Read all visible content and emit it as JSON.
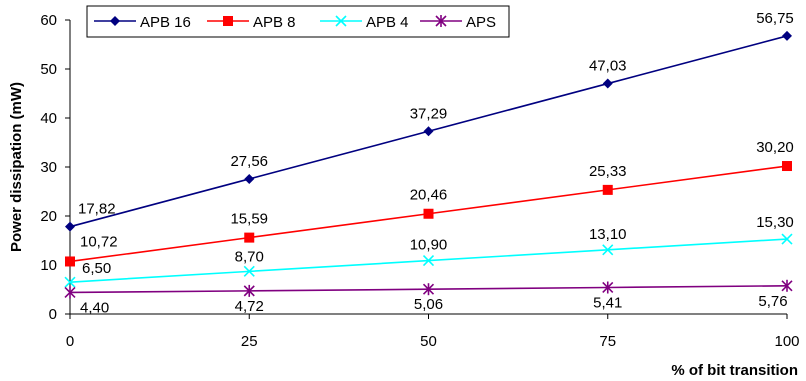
{
  "chart_data": {
    "type": "line",
    "xlabel": "% of bit transition",
    "ylabel": "Power dissipation (mW)",
    "x": [
      0,
      25,
      50,
      75,
      100
    ],
    "xlim": [
      0,
      100
    ],
    "ylim": [
      0,
      60
    ],
    "y_ticks": [
      "0",
      "10",
      "20",
      "30",
      "40",
      "50",
      "60"
    ],
    "x_ticks": [
      "0",
      "25",
      "50",
      "75",
      "100"
    ],
    "grid": false,
    "legend_position": "top-left",
    "series": [
      {
        "name": "APB 16",
        "color": "#000080",
        "marker": "diamond",
        "values": [
          17.82,
          27.56,
          37.29,
          47.03,
          56.75
        ],
        "labels": [
          "17,82",
          "27,56",
          "37,29",
          "47,03",
          "56,75"
        ]
      },
      {
        "name": "APB 8",
        "color": "#ff0000",
        "marker": "square",
        "values": [
          10.72,
          15.59,
          20.46,
          25.33,
          30.2
        ],
        "labels": [
          "10,72",
          "15,59",
          "20,46",
          "25,33",
          "30,20"
        ]
      },
      {
        "name": "APB 4",
        "color": "#00ffff",
        "marker": "x",
        "values": [
          6.5,
          8.7,
          10.9,
          13.1,
          15.3
        ],
        "labels": [
          "6,50",
          "8,70",
          "10,90",
          "13,10",
          "15,30"
        ]
      },
      {
        "name": "APS",
        "color": "#800080",
        "marker": "star",
        "values": [
          4.4,
          4.72,
          5.06,
          5.41,
          5.76
        ],
        "labels": [
          "4,40",
          "4,72",
          "5,06",
          "5,41",
          "5,76"
        ]
      }
    ]
  }
}
